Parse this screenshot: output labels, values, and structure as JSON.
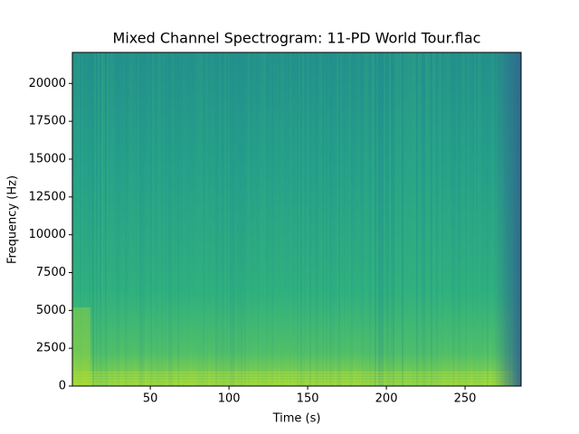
{
  "chart_data": {
    "type": "spectrogram",
    "title": "Mixed Channel Spectrogram: 11-PD World Tour.flac",
    "xlabel": "Time (s)",
    "ylabel": "Frequency (Hz)",
    "xlim": [
      0.5,
      285.6
    ],
    "ylim": [
      0,
      22050
    ],
    "xticks": [
      50,
      100,
      150,
      200,
      250
    ],
    "yticks": [
      0,
      2500,
      5000,
      7500,
      10000,
      12500,
      15000,
      17500,
      20000
    ]
  }
}
